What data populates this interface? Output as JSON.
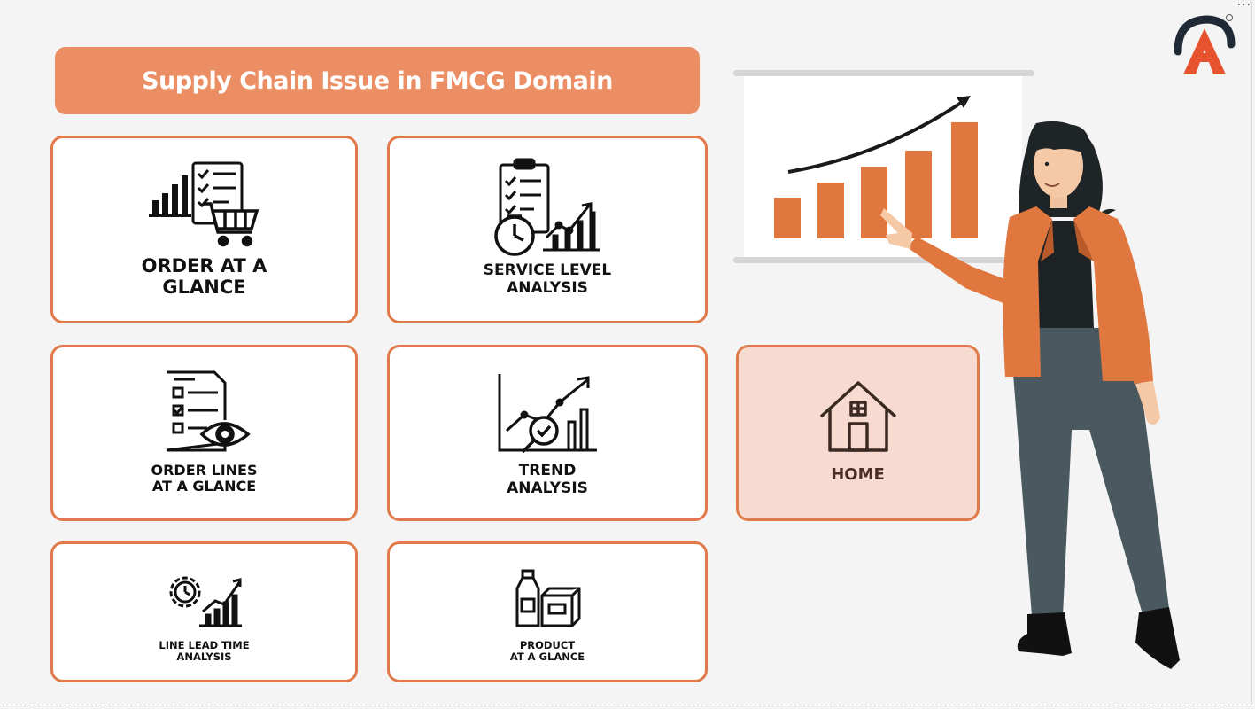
{
  "header": {
    "title": "Supply Chain Issue in FMCG Domain"
  },
  "tiles": {
    "order_glance": {
      "line1": "ORDER AT A",
      "line2": "GLANCE"
    },
    "service_level": {
      "line1": "SERVICE LEVEL",
      "line2": "ANALYSIS"
    },
    "order_lines": {
      "line1": "ORDER LINES",
      "line2": "AT A GLANCE"
    },
    "trend": {
      "line1": "TREND",
      "line2": "ANALYSIS"
    },
    "lead_time": {
      "line1": "LINE LEAD TIME",
      "line2": "ANALYSIS"
    },
    "product": {
      "line1": "PRODUCT",
      "line2": "AT A GLANCE"
    },
    "home": {
      "label": "HOME"
    }
  },
  "toolbar": {
    "more": "···"
  },
  "colors": {
    "accent": "#ec8e63",
    "border": "#e07a4a",
    "home_bg": "#f8dbd0",
    "chart_bar": "#e0773f",
    "jacket": "#e0773f",
    "pants": "#4a5860"
  },
  "icons": [
    "bar-chart-icon",
    "checklist-icon",
    "shopping-cart-icon",
    "clipboard-icon",
    "clock-icon",
    "line-chart-icon",
    "eye-icon",
    "magnifier-icon",
    "gear-icon",
    "bottle-icon",
    "box-icon",
    "house-icon",
    "logo-icon"
  ]
}
